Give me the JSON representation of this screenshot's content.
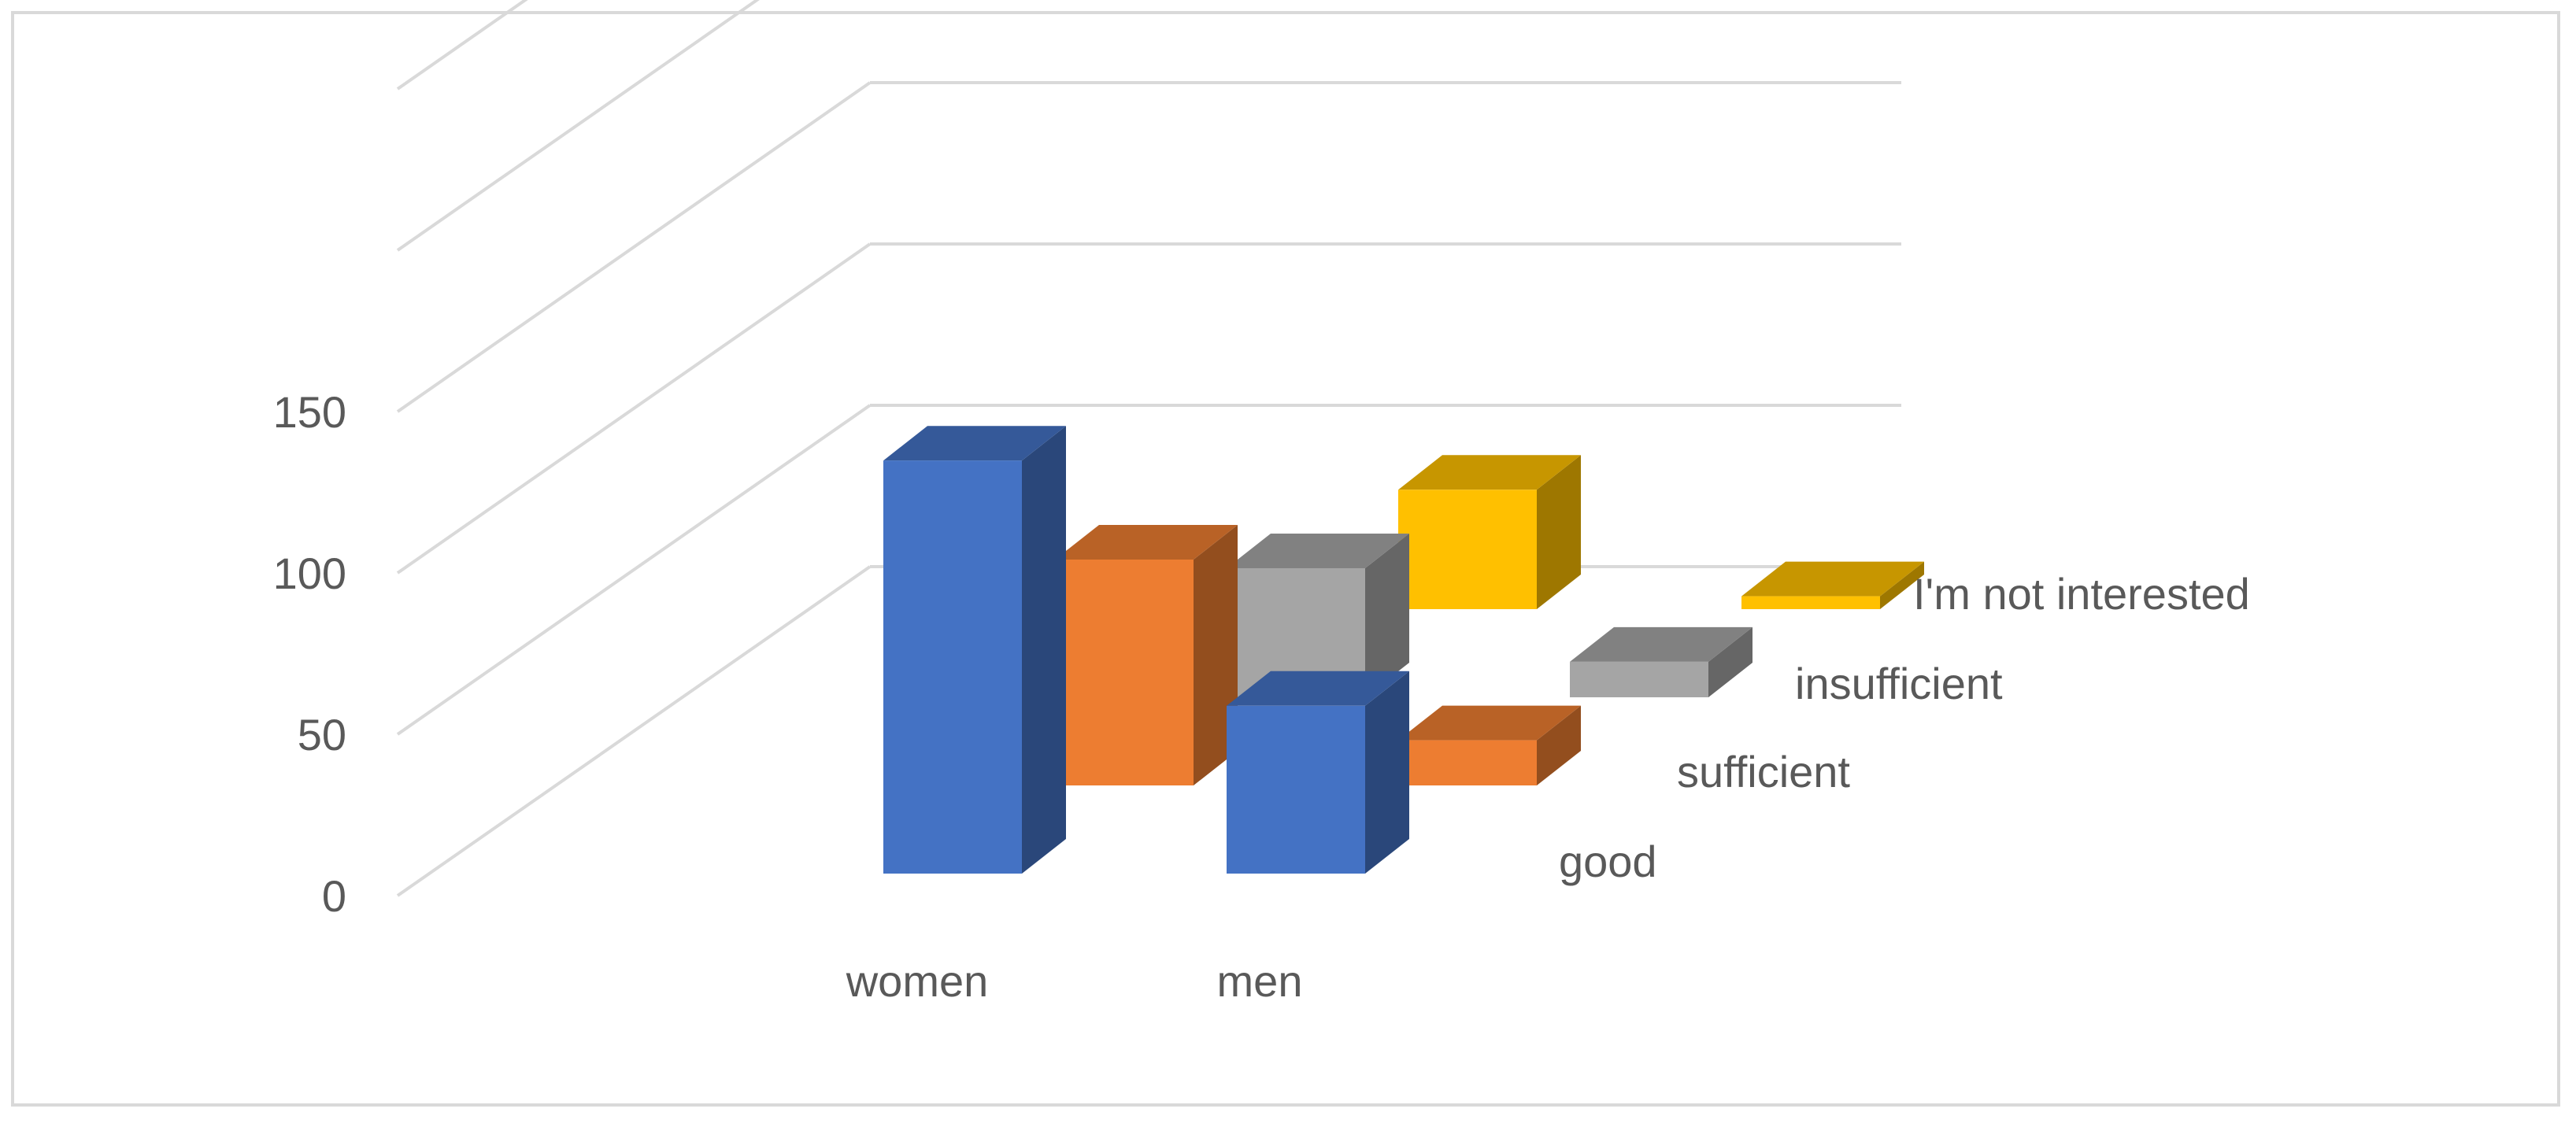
{
  "chart_data": {
    "type": "bar",
    "subtype": "3d-column",
    "categories": [
      "women",
      "men"
    ],
    "series": [
      {
        "name": "good",
        "values": [
          128,
          52
        ],
        "color": "#4472C4"
      },
      {
        "name": "sufficient",
        "values": [
          70,
          14
        ],
        "color": "#ED7D31"
      },
      {
        "name": "insufficient",
        "values": [
          40,
          11
        ],
        "color": "#A5A5A5"
      },
      {
        "name": "I'm not interested",
        "values": [
          37,
          4
        ],
        "color": "#FFC000"
      }
    ],
    "y_ticks": [
      0,
      50,
      100,
      150
    ],
    "ylim": [
      0,
      150
    ],
    "grid": true
  }
}
